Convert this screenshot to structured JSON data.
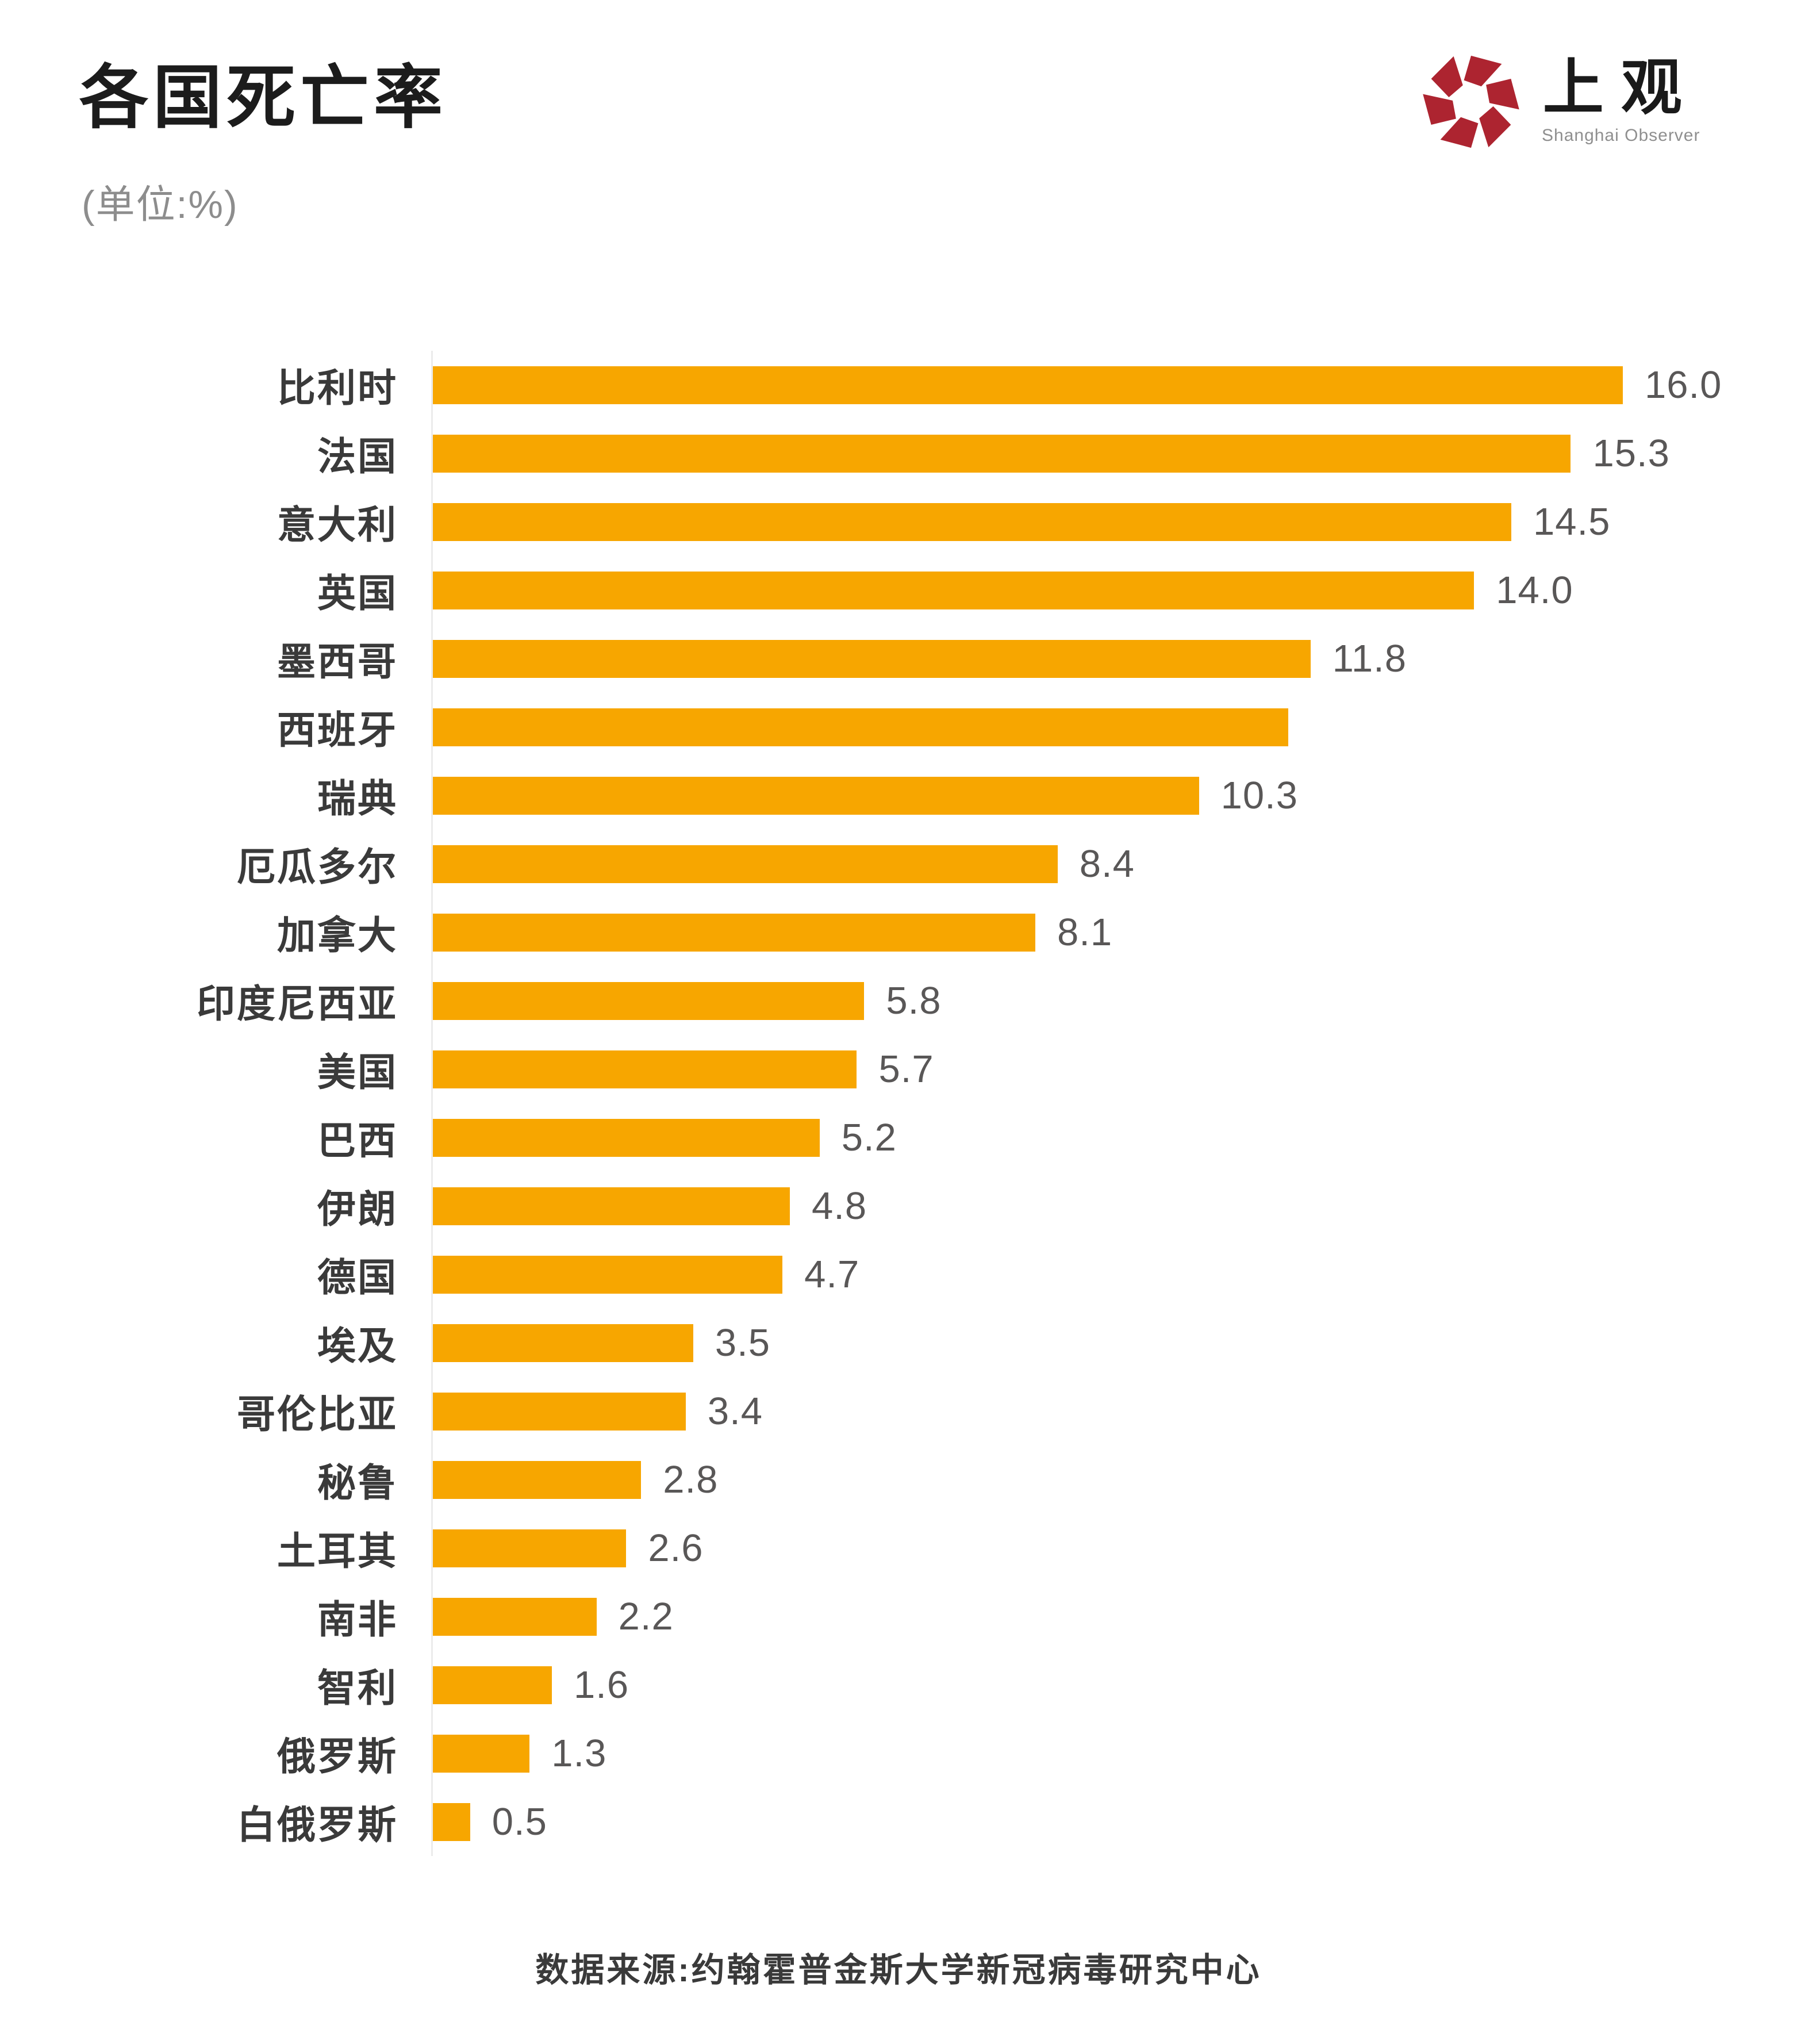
{
  "page": {
    "title": "各国死亡率",
    "subtitle": "(单位:%)",
    "source": "数据来源:约翰霍普金斯大学新冠病毒研究中心"
  },
  "logo": {
    "name": "上观",
    "subtitle": "Shanghai Observer",
    "icon": "aperture-icon",
    "icon_color": "#AD2430"
  },
  "chart_data": {
    "type": "bar",
    "orientation": "horizontal",
    "title": "各国死亡率",
    "unit": "%",
    "xlabel": "",
    "ylabel": "",
    "xlim": [
      0,
      16
    ],
    "grid": false,
    "legend": "none",
    "bar_color": "#F7A600",
    "value_label_color": "#595757",
    "categories": [
      "比利时",
      "法国",
      "意大利",
      "英国",
      "墨西哥",
      "西班牙",
      "瑞典",
      "厄瓜多尔",
      "加拿大",
      "印度尼西亚",
      "美国",
      "巴西",
      "伊朗",
      "德国",
      "埃及",
      "哥伦比亚",
      "秘鲁",
      "土耳其",
      "南非",
      "智利",
      "俄罗斯",
      "白俄罗斯"
    ],
    "values": [
      16.0,
      15.3,
      14.5,
      14.0,
      11.8,
      11.5,
      10.3,
      8.4,
      8.1,
      5.8,
      5.7,
      5.2,
      4.8,
      4.7,
      3.5,
      3.4,
      2.8,
      2.6,
      2.2,
      1.6,
      1.3,
      0.5
    ],
    "value_labels": [
      "16.0",
      "15.3",
      "14.5",
      "14.0",
      "11.8",
      "",
      "10.3",
      "8.4",
      "8.1",
      "5.8",
      "5.7",
      "5.2",
      "4.8",
      "4.7",
      "3.5",
      "3.4",
      "2.8",
      "2.6",
      "2.2",
      "1.6",
      "1.3",
      "0.5"
    ]
  }
}
